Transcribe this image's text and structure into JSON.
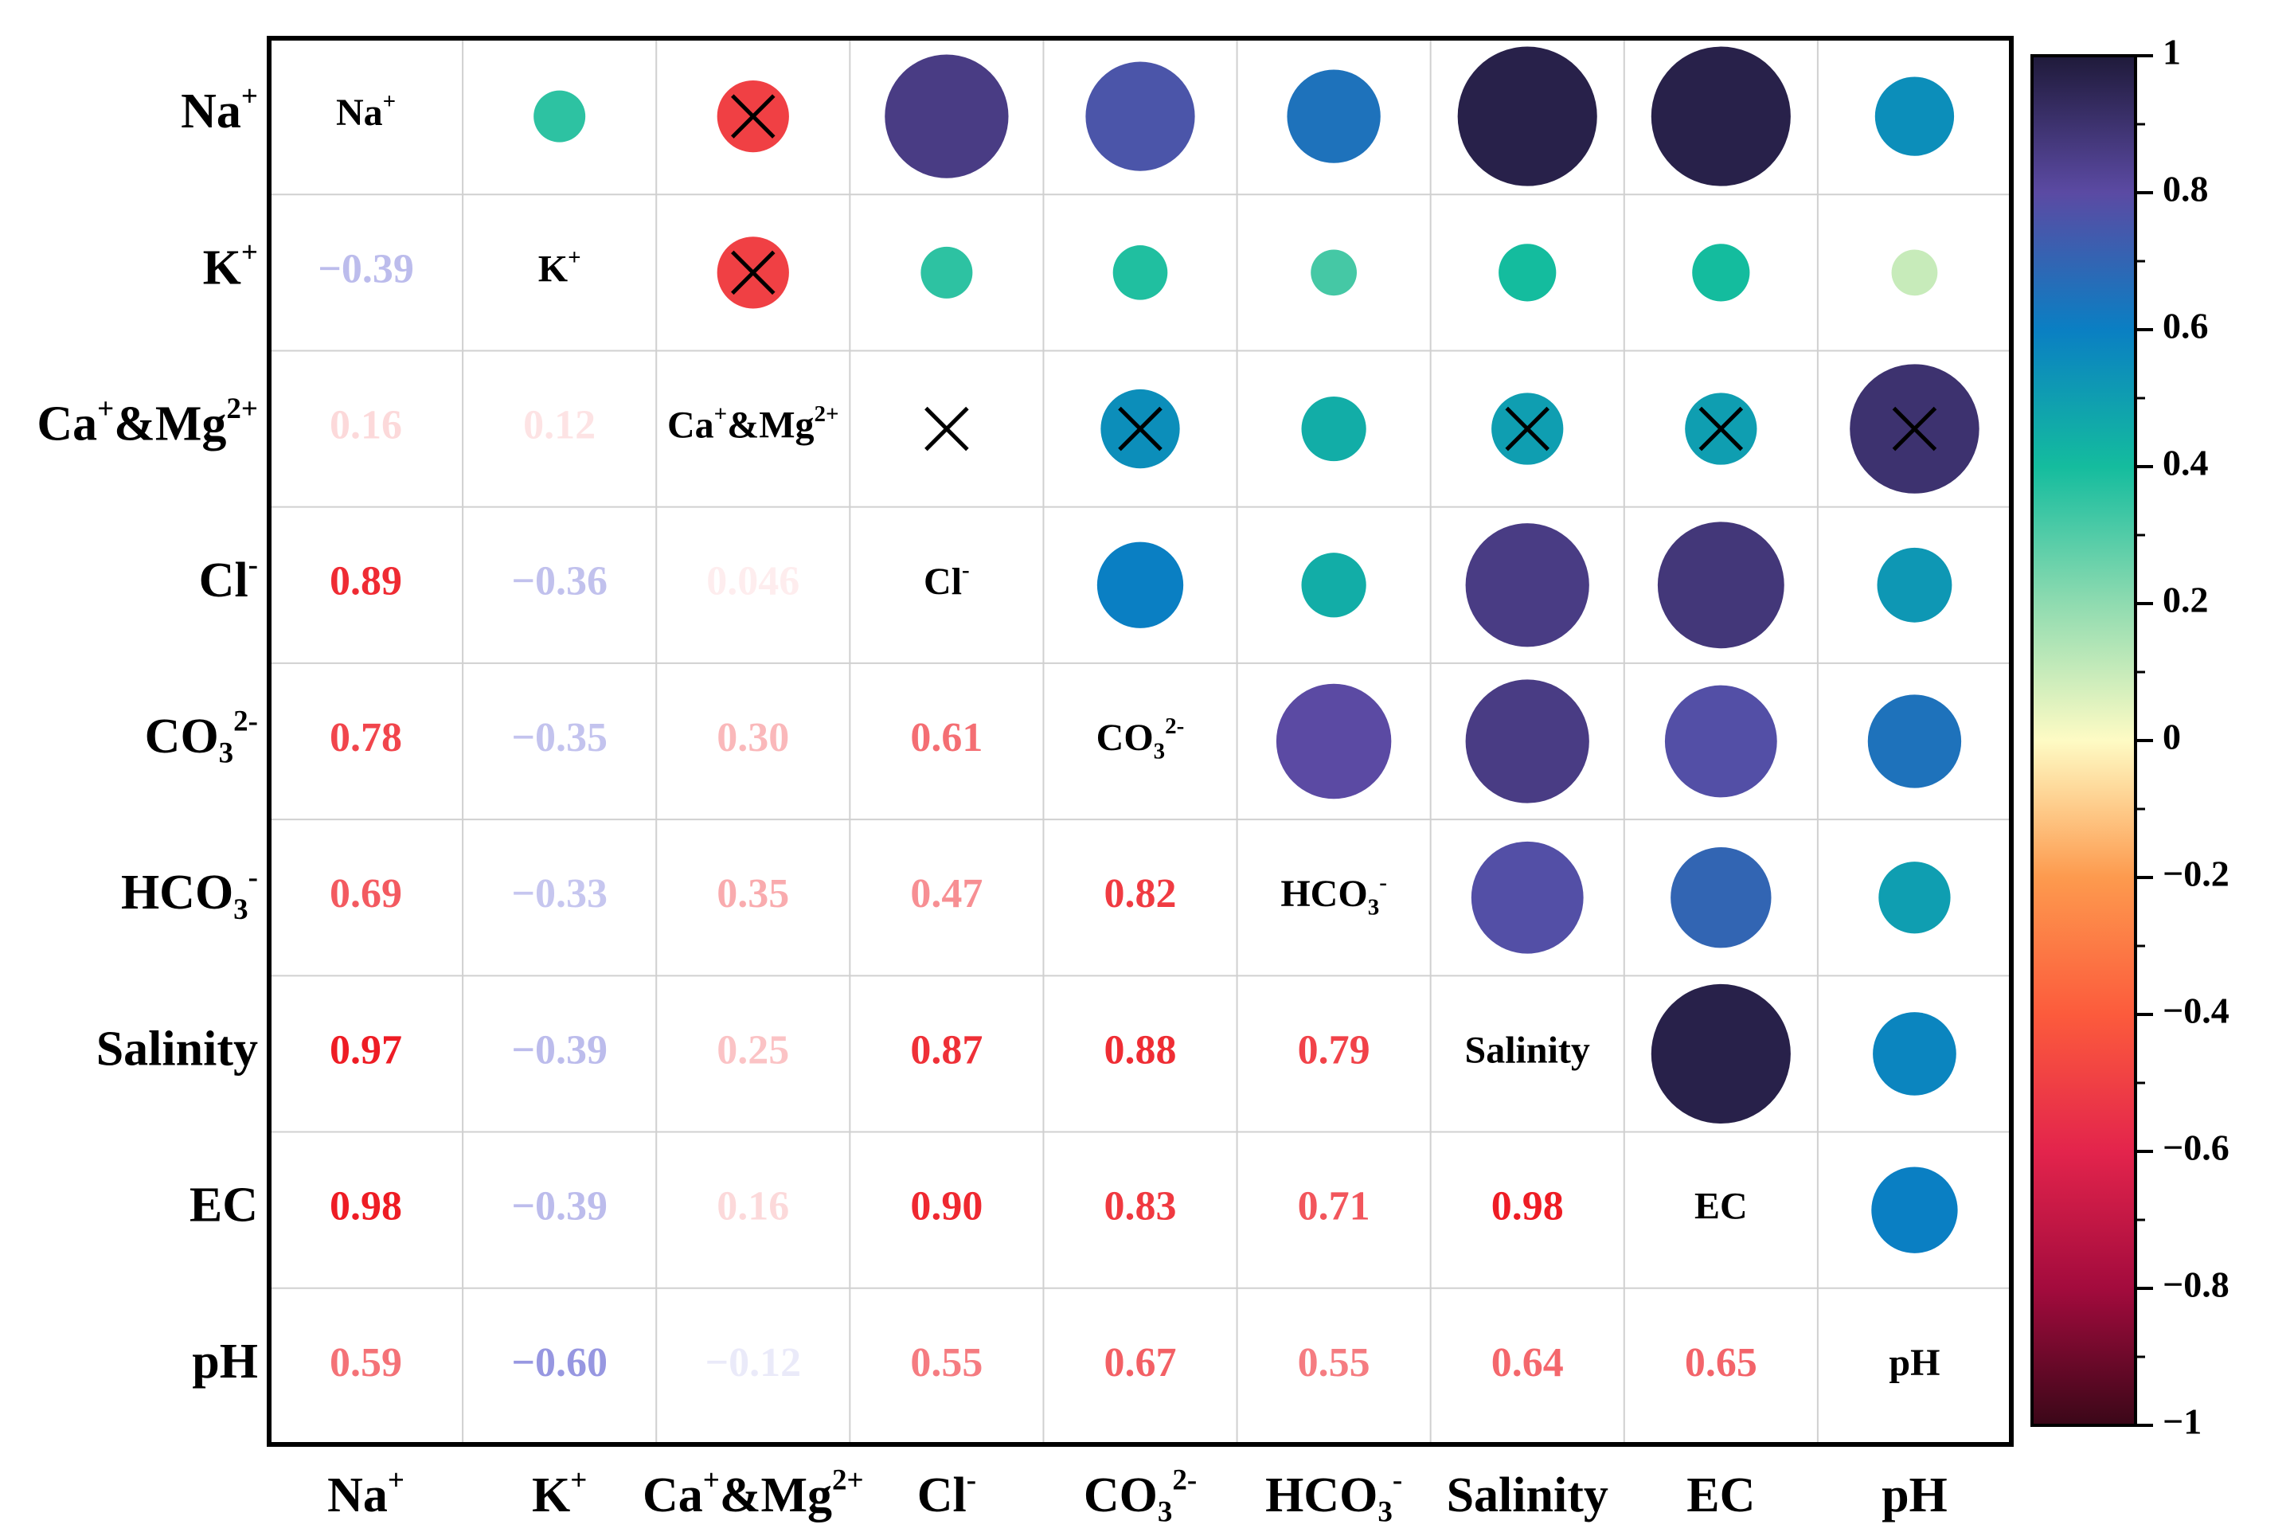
{
  "chart_data": {
    "type": "heatmap",
    "subtype": "correlation-matrix",
    "variables": [
      {
        "base": "Na",
        "sup": "+",
        "sub": "",
        "sup2": ""
      },
      {
        "base": "K",
        "sup": "+",
        "sub": "",
        "sup2": ""
      },
      {
        "base": "Ca",
        "sup": "+",
        "sub": "",
        "sup2": "2+",
        "mid": "&Mg"
      },
      {
        "base": "Cl",
        "sup": "-",
        "sub": "",
        "sup2": ""
      },
      {
        "base": "CO",
        "sup": "",
        "sub": "3",
        "sup2": "2-"
      },
      {
        "base": "HCO",
        "sup": "",
        "sub": "3",
        "sup2": "-"
      },
      {
        "base": "Salinity",
        "sup": "",
        "sub": "",
        "sup2": ""
      },
      {
        "base": "EC",
        "sup": "",
        "sub": "",
        "sup2": ""
      },
      {
        "base": "pH",
        "sup": "",
        "sub": "",
        "sup2": ""
      }
    ],
    "lower_triangle_labels": [
      [],
      [
        "−0.39"
      ],
      [
        "0.16",
        "0.12"
      ],
      [
        "0.89",
        "−0.36",
        "0.046"
      ],
      [
        "0.78",
        "−0.35",
        "0.30",
        "0.61"
      ],
      [
        "0.69",
        "−0.33",
        "0.35",
        "0.47",
        "0.82"
      ],
      [
        "0.97",
        "−0.39",
        "0.25",
        "0.87",
        "0.88",
        "0.79"
      ],
      [
        "0.98",
        "−0.39",
        "0.16",
        "0.90",
        "0.83",
        "0.71",
        "0.98"
      ],
      [
        "0.59",
        "−0.60",
        "−0.12",
        "0.55",
        "0.67",
        "0.55",
        "0.64",
        "0.65"
      ]
    ],
    "upper_triangle_colors": [
      [
        null,
        0.36,
        -0.5,
        0.86,
        0.76,
        0.65,
        0.97,
        0.97,
        0.55
      ],
      [
        null,
        null,
        -0.5,
        0.36,
        0.38,
        0.32,
        0.4,
        0.4,
        0.1
      ],
      [
        null,
        null,
        null,
        null,
        0.55,
        0.45,
        0.5,
        0.5,
        0.9
      ],
      [
        null,
        null,
        null,
        null,
        0.6,
        0.45,
        0.86,
        0.88,
        0.52
      ],
      [
        null,
        null,
        null,
        null,
        null,
        0.8,
        0.86,
        0.78,
        0.65
      ],
      [
        null,
        null,
        null,
        null,
        null,
        null,
        0.78,
        0.7,
        0.5
      ],
      [
        null,
        null,
        null,
        null,
        null,
        null,
        null,
        0.97,
        0.58
      ],
      [
        null,
        null,
        null,
        null,
        null,
        null,
        null,
        null,
        0.6
      ],
      [
        null,
        null,
        null,
        null,
        null,
        null,
        null,
        null,
        null
      ]
    ],
    "insignificant_marks": [
      [
        0,
        2
      ],
      [
        1,
        2
      ],
      [
        2,
        3
      ],
      [
        2,
        4
      ],
      [
        2,
        6
      ],
      [
        2,
        7
      ],
      [
        2,
        8
      ]
    ],
    "colorbar": {
      "min": -1,
      "max": 1,
      "ticks": [
        "1",
        "0.8",
        "0.6",
        "0.4",
        "0.2",
        "0",
        "−0.2",
        "−0.4",
        "−0.6",
        "−0.8",
        "−1"
      ],
      "tick_values": [
        1,
        0.8,
        0.6,
        0.4,
        0.2,
        0,
        -0.2,
        -0.4,
        -0.6,
        -0.8,
        -1
      ],
      "stops": [
        {
          "v": -1.0,
          "c": "#3a0718"
        },
        {
          "v": -0.8,
          "c": "#a30b3d"
        },
        {
          "v": -0.6,
          "c": "#e3244c"
        },
        {
          "v": -0.4,
          "c": "#fc5b3c"
        },
        {
          "v": -0.2,
          "c": "#fd9a4e"
        },
        {
          "v": 0.0,
          "c": "#fefbc4"
        },
        {
          "v": 0.2,
          "c": "#8fdbb0"
        },
        {
          "v": 0.4,
          "c": "#14bc9e"
        },
        {
          "v": 0.6,
          "c": "#0a7fc3"
        },
        {
          "v": 0.8,
          "c": "#5b4aa3"
        },
        {
          "v": 1.0,
          "c": "#1f1a3a"
        }
      ]
    },
    "text_colors": {
      "positive": "#ee1c24",
      "negative": "#5b5bd0"
    }
  }
}
